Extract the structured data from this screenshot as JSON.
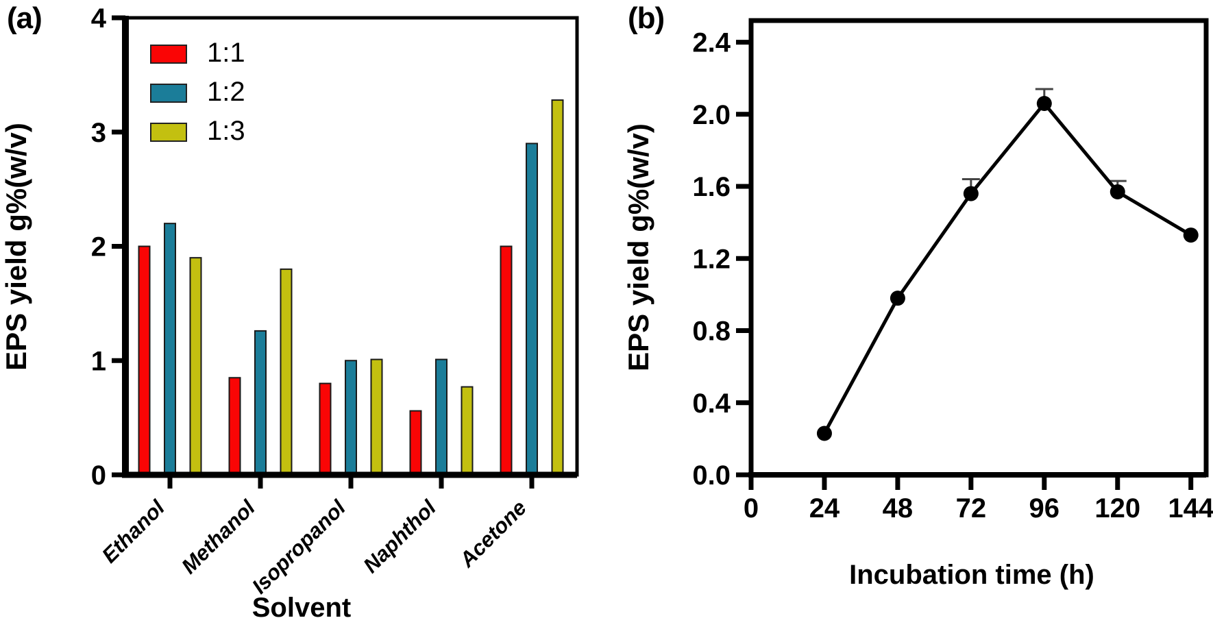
{
  "figure": {
    "panel_a_label": "(a)",
    "panel_b_label": "(b)",
    "background_color": "#ffffff",
    "axis_color": "#000000"
  },
  "chart_data": [
    {
      "id": "panel-a",
      "type": "bar",
      "panel": "(a)",
      "title": "",
      "xlabel": "Solvent",
      "ylabel": "EPS yield g%(w/v)",
      "categories": [
        "Ethanol",
        "Methanol",
        "Isopropanol",
        "Naphthol",
        "Acetone"
      ],
      "series": [
        {
          "name": "1:1",
          "color": "#fa0505",
          "values": [
            2.0,
            0.85,
            0.8,
            0.56,
            2.0
          ]
        },
        {
          "name": "1:2",
          "color": "#1b7d99",
          "values": [
            2.2,
            1.26,
            1.0,
            1.01,
            2.9
          ]
        },
        {
          "name": "1:3",
          "color": "#c3c010",
          "values": [
            1.9,
            1.8,
            1.01,
            0.77,
            3.28
          ]
        }
      ],
      "ylim": [
        0,
        4
      ],
      "yticks": [
        "0",
        "1",
        "2",
        "3",
        "4"
      ],
      "legend_position": "top-left",
      "legend_entries": [
        "1:1",
        "1:2",
        "1:3"
      ],
      "bar_edge_color": "#1a1a1a",
      "grid": false
    },
    {
      "id": "panel-b",
      "type": "line",
      "panel": "(b)",
      "title": "",
      "xlabel": "Incubation time (h)",
      "ylabel": "EPS yield g%(w/v)",
      "x": [
        24,
        48,
        72,
        96,
        120,
        144
      ],
      "y": [
        0.23,
        0.98,
        1.56,
        2.06,
        1.57,
        1.33
      ],
      "yerr_upper": [
        0,
        0,
        0.08,
        0.08,
        0.06,
        0
      ],
      "xticks": [
        "0",
        "24",
        "48",
        "72",
        "96",
        "120",
        "144"
      ],
      "yticks": [
        "0.0",
        "0.4",
        "0.8",
        "1.2",
        "1.6",
        "2.0",
        "2.4"
      ],
      "xlim": [
        0,
        149
      ],
      "ylim": [
        0,
        2.52
      ],
      "ytick_max": 2.4,
      "marker": "circle",
      "marker_color": "#000000",
      "line_color": "#000000",
      "error_bar_color": "#444444",
      "grid": false
    }
  ]
}
